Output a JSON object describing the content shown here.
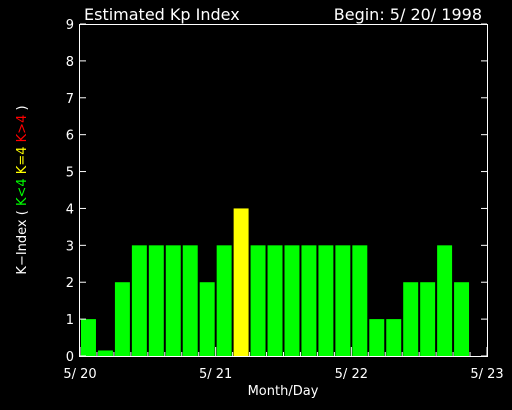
{
  "chart_data": {
    "type": "bar",
    "title": "Estimated Kp Index",
    "begin_label": "Begin: 5/ 20/ 1998",
    "xlabel": "Month/Day",
    "ylabel": {
      "prefix": "K−Index (",
      "low": "K<4",
      "mid": "K=4",
      "high": "K>4",
      "suffix": ")"
    },
    "ylim": [
      0,
      9
    ],
    "yticks": [
      "0",
      "1",
      "2",
      "3",
      "4",
      "5",
      "6",
      "7",
      "8",
      "9"
    ],
    "xticks": [
      "5/ 20",
      "5/ 21",
      "5/ 22",
      "5/ 23"
    ],
    "bins_per_day": 8,
    "values": [
      1,
      0.15,
      2,
      3,
      3,
      3,
      3,
      2,
      3,
      4,
      3,
      3,
      3,
      3,
      3,
      3,
      3,
      1,
      1,
      2,
      2,
      3,
      2
    ],
    "colors": {
      "low": "#00ff00",
      "mid": "#ffff00",
      "high": "#ff0000",
      "axis": "#ffffff",
      "background": "#000000"
    }
  }
}
